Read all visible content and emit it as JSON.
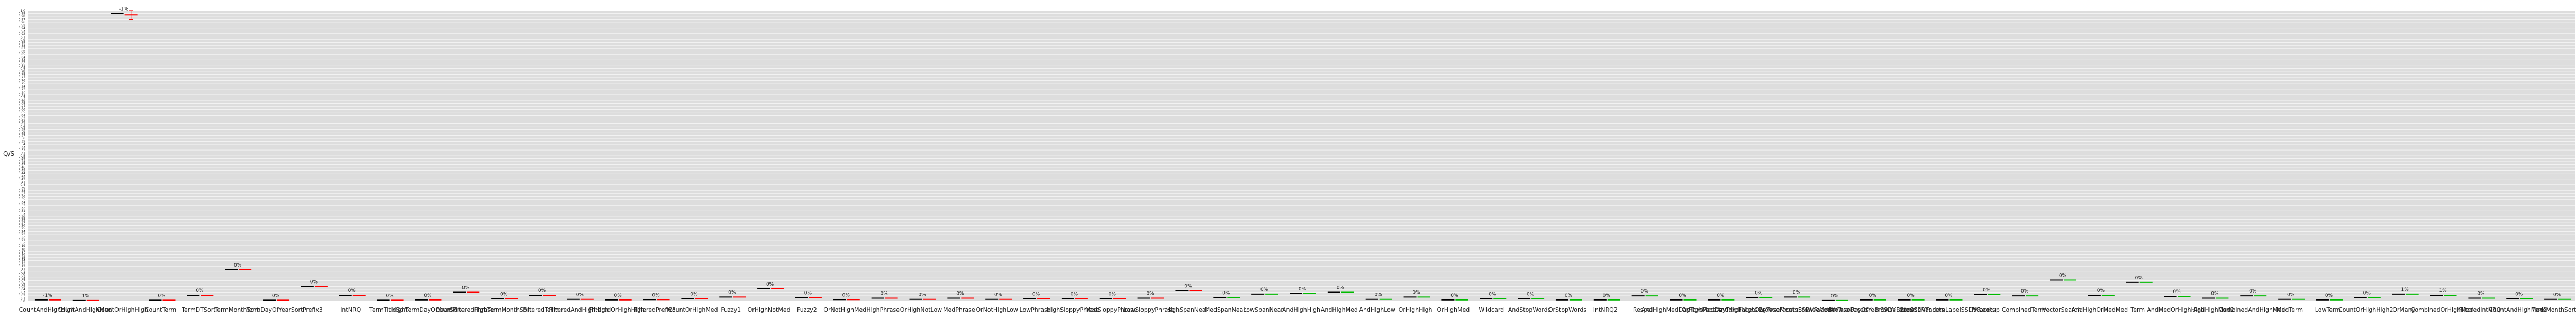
{
  "chart_data": {
    "type": "scatter",
    "title": "",
    "xlabel": "",
    "ylabel": "Q/S",
    "ylim": [
      0,
      1.0
    ],
    "grid": true,
    "legend": "none",
    "colors": {
      "baseline": "#000000",
      "worse": "#ff0000",
      "better": "#00bb00",
      "grid": "#ffffff",
      "background": "#dddddd"
    },
    "categories": [
      "CountAndHighHigh",
      "CountAndHighMed",
      "CountOrHighHigh",
      "CountPhrase",
      "CountTerm",
      "TermDTSort",
      "TermMonthSort",
      "TermDayOfYearSort",
      "HighTermTitleBDVSort",
      "Prefix3",
      "IntNRQ",
      "TermTitleSort",
      "HighTermDayOfYearSort",
      "HighTermMonthSort",
      "MedTerm",
      "LowTerm",
      "OrHighNotMed",
      "OrNotHighMed",
      "OrHighNotLow",
      "OrNotHighLow",
      "Fuzzy1",
      "Fuzzy2",
      "HighPhrase",
      "MedPhrase",
      "LowPhrase",
      "HighSloppyPhrase",
      "MedSloppyPhrase",
      "LowSloppyPhrase",
      "HighSpanNear",
      "MedSpanNear",
      "LowSpanNear",
      "AndHighHigh",
      "AndHighMed",
      "AndHighLow",
      "OrHighHigh",
      "OrHighMed",
      "OrHighLow",
      "AndMedOrHighHigh",
      "Respell",
      "Wildcard",
      "HighIntervalsOrdered",
      "MedIntervalsOrdered",
      "LowIntervalsOrdered",
      "BrowseMonthSSDVFacets",
      "BrowseMonthTaxoFacets",
      "BrowseDayOfYearSSDVFacets",
      "BrowseDayOfYearTaxoFacets",
      "BrowseDateSSDVFacets",
      "BrowseDateTaxoFacets",
      "BrowseRandomLabelSSDVFacets",
      "BrowseRandomLabelTaxoFacets",
      "PKLookup",
      "CombinedTerm",
      "CombinedAndHighHigh",
      "CombinedAndHighMed",
      "CombinedOrHighHigh",
      "CombinedOrHighMed",
      "VectorSearch",
      "AndHighOrMedMed",
      "Term",
      "AndMedOrHighMed",
      "AndHighMedDayTaxoFacets",
      "OrHighMedDayTaxoFacets",
      "OrMany",
      "CountFilteredPhrase",
      "FilteredTerm",
      "FilteredAndHighHigh",
      "FilteredOrHighHigh"
    ],
    "labels_shown": [
      "CountAndHighHigh",
      "CountAndHighMed",
      "CountOrHighHigh",
      "CountTerm",
      "TermDTSort",
      "TermMonthSort",
      "TermDayOfYearSort",
      "Prefix3",
      "IntNRQ",
      "TermTitleSort",
      "HighTermDayOfYearSort",
      "CountFilteredPhrase",
      "HighTermMonthSort",
      "FilteredTerm",
      "FilteredAndHighHigh",
      "FilteredOrHighHigh",
      "FilteredPrefix3",
      "CountOrHighMed",
      "Fuzzy1",
      "OrHighNotMed",
      "Fuzzy2",
      "OrNotHighMed",
      "HighPhrase",
      "OrHighNotLow",
      "MedPhrase",
      "OrNotHighLow",
      "LowPhrase",
      "HighSloppyPhrase",
      "MedSloppyPhrase",
      "LowSloppyPhrase",
      "HighSpanNear",
      "MedSpanNear",
      "LowSpanNear",
      "AndHighHigh",
      "AndHighMed",
      "AndHighLow",
      "OrHighHigh",
      "OrHighMed",
      "Wildcard",
      "AndStopWords",
      "OrStopWords",
      "IntNRQ2",
      "Respell",
      "AndHighMedDayTaxoFacets",
      "OrHighMedDayTaxoFacets",
      "AndHighHighDayTaxoFacets",
      "BrowseMonthSSDVFacets",
      "BrowseMonthTaxoFacets",
      "BrowseDayOfYearSSDVFacets",
      "BrowseDateSSDVFacets",
      "BrowseRandomLabelSSDVFacets",
      "PKLookup",
      "CombinedTerm",
      "VectorSearch",
      "AndHighOrMedMed",
      "Term",
      "AndMedOrHighHigh",
      "AndHighMed2",
      "CombinedAndHighMed",
      "MedTerm",
      "LowTerm",
      "CountOrHighHigh2",
      "OrMany",
      "CombinedOrHighMed",
      "FilteredIntNRQ",
      "CountAndHighMed2",
      "TermMonthSort2"
    ],
    "series": [
      {
        "name": "",
        "points": [
          {
            "label": "CountAndHighHigh",
            "baseline": 0.004,
            "candidate": 0.004,
            "pct": "-1%",
            "trend": "worse"
          },
          {
            "label": "CountAndHighMed",
            "baseline": 0.002,
            "candidate": 0.002,
            "pct": "1%",
            "trend": "worse"
          },
          {
            "label": "CountOrHighHigh",
            "baseline": 0.99,
            "candidate": 0.985,
            "pct": "-1%",
            "trend": "worse"
          },
          {
            "label": "CountTerm",
            "baseline": 0.003,
            "candidate": 0.003,
            "pct": "0%",
            "trend": "worse"
          },
          {
            "label": "TermDTSort",
            "baseline": 0.02,
            "candidate": 0.02,
            "pct": "0%",
            "trend": "worse"
          },
          {
            "label": "TermMonthSort",
            "baseline": 0.108,
            "candidate": 0.108,
            "pct": "0%",
            "trend": "worse"
          },
          {
            "label": "TermDayOfYearSort",
            "baseline": 0.003,
            "candidate": 0.003,
            "pct": "0%",
            "trend": "worse"
          },
          {
            "label": "Prefix3",
            "baseline": 0.05,
            "candidate": 0.05,
            "pct": "0%",
            "trend": "worse"
          },
          {
            "label": "IntNRQ",
            "baseline": 0.02,
            "candidate": 0.02,
            "pct": "0%",
            "trend": "worse"
          },
          {
            "label": "TermTitleSort",
            "baseline": 0.003,
            "candidate": 0.003,
            "pct": "0%",
            "trend": "worse"
          },
          {
            "label": "HighTermDayOfYearSort",
            "baseline": 0.004,
            "candidate": 0.004,
            "pct": "0%",
            "trend": "worse"
          },
          {
            "label": "CountFilteredPhrase",
            "baseline": 0.03,
            "candidate": 0.03,
            "pct": "0%",
            "trend": "worse"
          },
          {
            "label": "HighTermMonthSort",
            "baseline": 0.008,
            "candidate": 0.008,
            "pct": "0%",
            "trend": "worse"
          },
          {
            "label": "FilteredTerm",
            "baseline": 0.02,
            "candidate": 0.02,
            "pct": "0%",
            "trend": "worse"
          },
          {
            "label": "FilteredAndHighHigh",
            "baseline": 0.006,
            "candidate": 0.006,
            "pct": "0%",
            "trend": "worse"
          },
          {
            "label": "FilteredOrHighHigh",
            "baseline": 0.004,
            "candidate": 0.004,
            "pct": "0%",
            "trend": "worse"
          },
          {
            "label": "FilteredPrefix3",
            "baseline": 0.005,
            "candidate": 0.005,
            "pct": "0%",
            "trend": "worse"
          },
          {
            "label": "CountOrHighMed",
            "baseline": 0.008,
            "candidate": 0.008,
            "pct": "0%",
            "trend": "worse"
          },
          {
            "label": "Fuzzy1",
            "baseline": 0.014,
            "candidate": 0.014,
            "pct": "0%",
            "trend": "worse"
          },
          {
            "label": "OrHighNotMed",
            "baseline": 0.042,
            "candidate": 0.042,
            "pct": "0%",
            "trend": "worse"
          },
          {
            "label": "Fuzzy2",
            "baseline": 0.012,
            "candidate": 0.012,
            "pct": "0%",
            "trend": "worse"
          },
          {
            "label": "OrNotHighMed",
            "baseline": 0.005,
            "candidate": 0.005,
            "pct": "0%",
            "trend": "worse"
          },
          {
            "label": "HighPhrase",
            "baseline": 0.01,
            "candidate": 0.01,
            "pct": "0%",
            "trend": "worse"
          },
          {
            "label": "OrHighNotLow",
            "baseline": 0.006,
            "candidate": 0.006,
            "pct": "0%",
            "trend": "worse"
          },
          {
            "label": "MedPhrase",
            "baseline": 0.01,
            "candidate": 0.01,
            "pct": "0%",
            "trend": "worse"
          },
          {
            "label": "OrNotHighLow",
            "baseline": 0.006,
            "candidate": 0.006,
            "pct": "0%",
            "trend": "worse"
          },
          {
            "label": "LowPhrase",
            "baseline": 0.008,
            "candidate": 0.008,
            "pct": "0%",
            "trend": "worse"
          },
          {
            "label": "HighSloppyPhrase",
            "baseline": 0.008,
            "candidate": 0.008,
            "pct": "0%",
            "trend": "worse"
          },
          {
            "label": "MedSloppyPhrase",
            "baseline": 0.008,
            "candidate": 0.008,
            "pct": "0%",
            "trend": "worse"
          },
          {
            "label": "LowSloppyPhrase",
            "baseline": 0.01,
            "candidate": 0.01,
            "pct": "0%",
            "trend": "worse"
          },
          {
            "label": "HighSpanNear",
            "baseline": 0.036,
            "candidate": 0.036,
            "pct": "0%",
            "trend": "worse"
          },
          {
            "label": "MedSpanNear",
            "baseline": 0.012,
            "candidate": 0.012,
            "pct": "0%",
            "trend": "better"
          },
          {
            "label": "LowSpanNear",
            "baseline": 0.024,
            "candidate": 0.024,
            "pct": "0%",
            "trend": "better"
          },
          {
            "label": "AndHighHigh",
            "baseline": 0.026,
            "candidate": 0.026,
            "pct": "0%",
            "trend": "better"
          },
          {
            "label": "AndHighMed",
            "baseline": 0.03,
            "candidate": 0.03,
            "pct": "0%",
            "trend": "better"
          },
          {
            "label": "AndHighLow",
            "baseline": 0.006,
            "candidate": 0.006,
            "pct": "0%",
            "trend": "better"
          },
          {
            "label": "OrHighHigh",
            "baseline": 0.014,
            "candidate": 0.014,
            "pct": "0%",
            "trend": "better"
          },
          {
            "label": "OrHighMed",
            "baseline": 0.004,
            "candidate": 0.004,
            "pct": "0%",
            "trend": "better"
          },
          {
            "label": "Wildcard",
            "baseline": 0.008,
            "candidate": 0.008,
            "pct": "0%",
            "trend": "better"
          },
          {
            "label": "AndStopWords",
            "baseline": 0.008,
            "candidate": 0.008,
            "pct": "0%",
            "trend": "better"
          },
          {
            "label": "OrStopWords",
            "baseline": 0.004,
            "candidate": 0.004,
            "pct": "0%",
            "trend": "better"
          },
          {
            "label": "IntNRQ2",
            "baseline": 0.004,
            "candidate": 0.004,
            "pct": "0%",
            "trend": "better"
          },
          {
            "label": "Respell",
            "baseline": 0.018,
            "candidate": 0.018,
            "pct": "0%",
            "trend": "better"
          },
          {
            "label": "AndHighMedDayTaxoFacets",
            "baseline": 0.004,
            "candidate": 0.004,
            "pct": "0%",
            "trend": "better"
          },
          {
            "label": "OrHighMedDayTaxoFacets",
            "baseline": 0.004,
            "candidate": 0.004,
            "pct": "0%",
            "trend": "better"
          },
          {
            "label": "AndHighHighDayTaxoFacets",
            "baseline": 0.012,
            "candidate": 0.012,
            "pct": "0%",
            "trend": "better"
          },
          {
            "label": "BrowseMonthSSDVFacets",
            "baseline": 0.014,
            "candidate": 0.014,
            "pct": "0%",
            "trend": "better"
          },
          {
            "label": "BrowseMonthTaxoFacets",
            "baseline": 0.002,
            "candidate": 0.002,
            "pct": "0%",
            "trend": "better"
          },
          {
            "label": "BrowseDayOfYearSSDVFacets",
            "baseline": 0.004,
            "candidate": 0.004,
            "pct": "0%",
            "trend": "better"
          },
          {
            "label": "BrowseDateSSDVFacets",
            "baseline": 0.004,
            "candidate": 0.004,
            "pct": "0%",
            "trend": "better"
          },
          {
            "label": "BrowseRandomLabelSSDVFacets",
            "baseline": 0.004,
            "candidate": 0.004,
            "pct": "0%",
            "trend": "better"
          },
          {
            "label": "PKLookup",
            "baseline": 0.022,
            "candidate": 0.022,
            "pct": "0%",
            "trend": "better"
          },
          {
            "label": "CombinedTerm",
            "baseline": 0.018,
            "candidate": 0.018,
            "pct": "0%",
            "trend": "better"
          },
          {
            "label": "VectorSearch",
            "baseline": 0.072,
            "candidate": 0.072,
            "pct": "0%",
            "trend": "better"
          },
          {
            "label": "AndHighOrMedMed",
            "baseline": 0.02,
            "candidate": 0.02,
            "pct": "0%",
            "trend": "better"
          },
          {
            "label": "Term",
            "baseline": 0.064,
            "candidate": 0.064,
            "pct": "0%",
            "trend": "better"
          },
          {
            "label": "AndMedOrHighHigh",
            "baseline": 0.016,
            "candidate": 0.016,
            "pct": "0%",
            "trend": "better"
          },
          {
            "label": "AndHighMed2",
            "baseline": 0.01,
            "candidate": 0.01,
            "pct": "0%",
            "trend": "better"
          },
          {
            "label": "CombinedAndHighMed",
            "baseline": 0.018,
            "candidate": 0.018,
            "pct": "0%",
            "trend": "better"
          },
          {
            "label": "MedTerm",
            "baseline": 0.006,
            "candidate": 0.006,
            "pct": "0%",
            "trend": "better"
          },
          {
            "label": "LowTerm",
            "baseline": 0.004,
            "candidate": 0.004,
            "pct": "0%",
            "trend": "better"
          },
          {
            "label": "CountOrHighHigh2",
            "baseline": 0.012,
            "candidate": 0.012,
            "pct": "0%",
            "trend": "better"
          },
          {
            "label": "OrMany",
            "baseline": 0.024,
            "candidate": 0.024,
            "pct": "1%",
            "trend": "better"
          },
          {
            "label": "CombinedOrHighMed",
            "baseline": 0.02,
            "candidate": 0.02,
            "pct": "1%",
            "trend": "better"
          },
          {
            "label": "FilteredIntNRQ",
            "baseline": 0.01,
            "candidate": 0.01,
            "pct": "0%",
            "trend": "better"
          },
          {
            "label": "CountAndHighMed2",
            "baseline": 0.008,
            "candidate": 0.008,
            "pct": "0%",
            "trend": "better"
          },
          {
            "label": "TermMonthSort2",
            "baseline": 0.006,
            "candidate": 0.006,
            "pct": "0%",
            "trend": "better"
          }
        ]
      }
    ],
    "outlier_error": {
      "label": "CountOrHighHigh",
      "low": 0.97,
      "high": 1.0
    }
  }
}
